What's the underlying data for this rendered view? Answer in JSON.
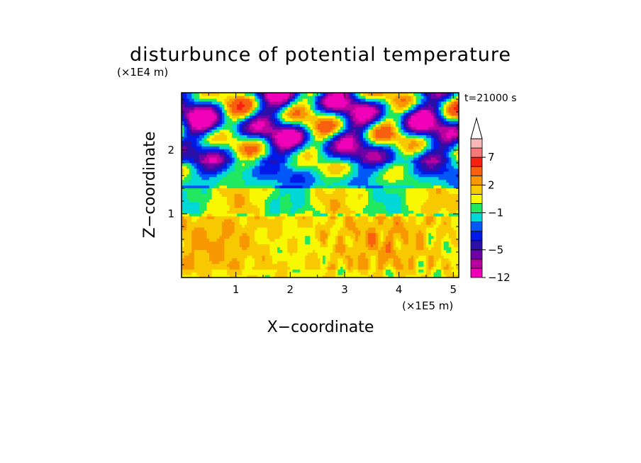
{
  "chart_data": {
    "type": "heatmap",
    "title": "disturbunce of potential temperature",
    "xlabel": "X−coordinate",
    "ylabel": "Z−coordinate",
    "x_scale_label": "(×1E5 m)",
    "y_scale_label": "(×1E4 m)",
    "time_label": "t=21000 s",
    "xlim": [
      0,
      5.1
    ],
    "ylim": [
      0,
      2.9
    ],
    "x_ticks": [
      {
        "value": 1,
        "label": "1"
      },
      {
        "value": 2,
        "label": "2"
      },
      {
        "value": 3,
        "label": "3"
      },
      {
        "value": 4,
        "label": "4"
      },
      {
        "value": 5,
        "label": "5"
      }
    ],
    "y_ticks": [
      {
        "value": 1,
        "label": "1"
      },
      {
        "value": 2,
        "label": "2"
      }
    ],
    "colorbar": {
      "colors": [
        "#f000b8",
        "#b8009e",
        "#6e00a8",
        "#2a10a8",
        "#0018e8",
        "#0058f8",
        "#00d8d8",
        "#20e860",
        "#f8f800",
        "#f8c800",
        "#f89800",
        "#f86010",
        "#f82010",
        "#f87878",
        "#f8b8b8"
      ],
      "levels": [
        -12,
        -7,
        -6,
        -5,
        -4,
        -3,
        -2,
        -1,
        0,
        1,
        2,
        3,
        5,
        7,
        9,
        12
      ],
      "tick_labels": [
        {
          "value": -12,
          "label": "−12"
        },
        {
          "value": -5,
          "label": "−5"
        },
        {
          "value": -1,
          "label": "−1"
        },
        {
          "value": 2,
          "label": "2"
        },
        {
          "value": 7,
          "label": "7"
        }
      ],
      "extend": "max"
    },
    "field_layers": [
      {
        "z_range": [
          0,
          0.15
        ],
        "value": 0.8
      },
      {
        "z_range": [
          0.15,
          0.95
        ],
        "value": 1.4
      },
      {
        "z_range": [
          0.95,
          1.4
        ],
        "value": 0.2
      },
      {
        "z_range": [
          1.4,
          1.8
        ],
        "value": -1.5
      },
      {
        "z_range": [
          1.8,
          2.9
        ],
        "value": -2.5
      }
    ]
  }
}
